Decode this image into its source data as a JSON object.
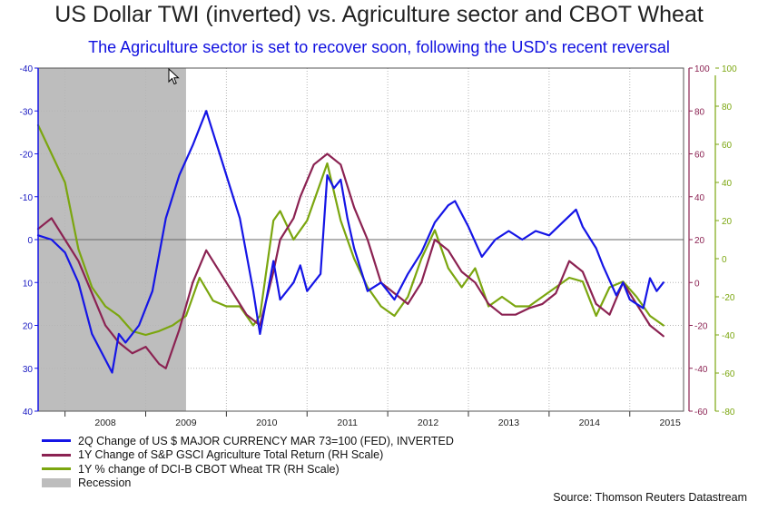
{
  "title": "US Dollar TWI (inverted) vs. Agriculture sector and CBOT Wheat",
  "subtitle": "The Agriculture sector is set to recover soon, following the USD's recent reversal",
  "source": "Source: Thomson Reuters Datastream",
  "colors": {
    "usd": "#1515e6",
    "gsci": "#8b2252",
    "wheat": "#7ba60f",
    "recession": "#bdbdbd"
  },
  "chart_data": {
    "type": "line",
    "title": "US Dollar TWI (inverted) vs. Agriculture sector and CBOT Wheat",
    "subtitle": "The Agriculture sector is set to recover soon, following the USD's recent reversal",
    "x_range": [
      "2007-09",
      "2015-09"
    ],
    "x_ticks": [
      "2008",
      "2009",
      "2010",
      "2011",
      "2012",
      "2013",
      "2014",
      "2015"
    ],
    "axes": {
      "left": {
        "min": -40,
        "max": 40,
        "inverted": true,
        "ticks": [
          -40,
          -30,
          -20,
          -10,
          0,
          10,
          20,
          30,
          40
        ],
        "color": "#1515e6"
      },
      "right1": {
        "min": -60,
        "max": 100,
        "ticks": [
          -60,
          -40,
          -20,
          0,
          20,
          40,
          60,
          80,
          100
        ],
        "color": "#8b2252"
      },
      "right2": {
        "min": -80,
        "max": 100,
        "ticks": [
          -80,
          -60,
          -40,
          -20,
          0,
          20,
          40,
          60,
          80,
          100
        ],
        "color": "#7ba60f"
      }
    },
    "grid": true,
    "legend_position": "bottom-left",
    "recession": {
      "start": "2007-09",
      "end": "2009-07",
      "label": "Recession"
    },
    "series": [
      {
        "name": "2Q Change of US $ MAJOR CURRENCY MAR 73=100 (FED), INVERTED",
        "axis": "left",
        "color": "#1515e6",
        "points": [
          [
            "2007-09",
            -1
          ],
          [
            "2007-11",
            0
          ],
          [
            "2008-01",
            3
          ],
          [
            "2008-03",
            10
          ],
          [
            "2008-05",
            22
          ],
          [
            "2008-07",
            28
          ],
          [
            "2008-08",
            31
          ],
          [
            "2008-09",
            22
          ],
          [
            "2008-10",
            24
          ],
          [
            "2008-12",
            20
          ],
          [
            "2009-02",
            12
          ],
          [
            "2009-04",
            -5
          ],
          [
            "2009-06",
            -15
          ],
          [
            "2009-08",
            -22
          ],
          [
            "2009-10",
            -30
          ],
          [
            "2009-11",
            -25
          ],
          [
            "2009-12",
            -20
          ],
          [
            "2010-02",
            -10
          ],
          [
            "2010-03",
            -5
          ],
          [
            "2010-05",
            12
          ],
          [
            "2010-06",
            22
          ],
          [
            "2010-08",
            5
          ],
          [
            "2010-09",
            14
          ],
          [
            "2010-11",
            10
          ],
          [
            "2010-12",
            6
          ],
          [
            "2011-01",
            12
          ],
          [
            "2011-03",
            8
          ],
          [
            "2011-04",
            -15
          ],
          [
            "2011-05",
            -12
          ],
          [
            "2011-06",
            -14
          ],
          [
            "2011-07",
            -5
          ],
          [
            "2011-08",
            2
          ],
          [
            "2011-10",
            12
          ],
          [
            "2011-12",
            10
          ],
          [
            "2012-02",
            14
          ],
          [
            "2012-04",
            8
          ],
          [
            "2012-06",
            3
          ],
          [
            "2012-08",
            -4
          ],
          [
            "2012-10",
            -8
          ],
          [
            "2012-11",
            -9
          ],
          [
            "2013-01",
            -3
          ],
          [
            "2013-03",
            4
          ],
          [
            "2013-05",
            0
          ],
          [
            "2013-07",
            -2
          ],
          [
            "2013-09",
            0
          ],
          [
            "2013-11",
            -2
          ],
          [
            "2014-01",
            -1
          ],
          [
            "2014-03",
            -4
          ],
          [
            "2014-05",
            -7
          ],
          [
            "2014-06",
            -3
          ],
          [
            "2014-08",
            2
          ],
          [
            "2014-09",
            6
          ],
          [
            "2014-11",
            13
          ],
          [
            "2014-12",
            10
          ],
          [
            "2015-01",
            14
          ],
          [
            "2015-03",
            16
          ],
          [
            "2015-04",
            9
          ],
          [
            "2015-05",
            12
          ],
          [
            "2015-06",
            10
          ]
        ]
      },
      {
        "name": "1Y Change of S&P GSCI Agriculture Total Return (RH Scale)",
        "axis": "right1",
        "color": "#8b2252",
        "points": [
          [
            "2007-09",
            25
          ],
          [
            "2007-11",
            30
          ],
          [
            "2008-01",
            20
          ],
          [
            "2008-03",
            10
          ],
          [
            "2008-05",
            -5
          ],
          [
            "2008-07",
            -20
          ],
          [
            "2008-09",
            -28
          ],
          [
            "2008-11",
            -33
          ],
          [
            "2009-01",
            -30
          ],
          [
            "2009-03",
            -38
          ],
          [
            "2009-04",
            -40
          ],
          [
            "2009-06",
            -22
          ],
          [
            "2009-08",
            0
          ],
          [
            "2009-10",
            15
          ],
          [
            "2009-12",
            5
          ],
          [
            "2010-02",
            -5
          ],
          [
            "2010-04",
            -15
          ],
          [
            "2010-06",
            -20
          ],
          [
            "2010-08",
            5
          ],
          [
            "2010-09",
            20
          ],
          [
            "2010-11",
            30
          ],
          [
            "2010-12",
            40
          ],
          [
            "2011-02",
            55
          ],
          [
            "2011-04",
            60
          ],
          [
            "2011-06",
            55
          ],
          [
            "2011-08",
            35
          ],
          [
            "2011-10",
            20
          ],
          [
            "2011-12",
            0
          ],
          [
            "2012-02",
            -5
          ],
          [
            "2012-04",
            -10
          ],
          [
            "2012-06",
            0
          ],
          [
            "2012-08",
            20
          ],
          [
            "2012-10",
            15
          ],
          [
            "2012-12",
            5
          ],
          [
            "2013-02",
            0
          ],
          [
            "2013-04",
            -10
          ],
          [
            "2013-06",
            -15
          ],
          [
            "2013-08",
            -15
          ],
          [
            "2013-10",
            -12
          ],
          [
            "2013-12",
            -10
          ],
          [
            "2014-02",
            -5
          ],
          [
            "2014-04",
            10
          ],
          [
            "2014-06",
            5
          ],
          [
            "2014-08",
            -10
          ],
          [
            "2014-10",
            -15
          ],
          [
            "2014-12",
            0
          ],
          [
            "2015-02",
            -10
          ],
          [
            "2015-04",
            -20
          ],
          [
            "2015-06",
            -25
          ]
        ]
      },
      {
        "name": "1Y % change of DCI-B CBOT Wheat TR (RH Scale)",
        "axis": "right2",
        "color": "#7ba60f",
        "points": [
          [
            "2007-09",
            70
          ],
          [
            "2007-11",
            55
          ],
          [
            "2008-01",
            40
          ],
          [
            "2008-03",
            5
          ],
          [
            "2008-05",
            -15
          ],
          [
            "2008-07",
            -25
          ],
          [
            "2008-09",
            -30
          ],
          [
            "2008-11",
            -38
          ],
          [
            "2009-01",
            -40
          ],
          [
            "2009-03",
            -38
          ],
          [
            "2009-05",
            -35
          ],
          [
            "2009-07",
            -30
          ],
          [
            "2009-09",
            -10
          ],
          [
            "2009-11",
            -22
          ],
          [
            "2010-01",
            -25
          ],
          [
            "2010-03",
            -25
          ],
          [
            "2010-05",
            -35
          ],
          [
            "2010-06",
            -30
          ],
          [
            "2010-08",
            20
          ],
          [
            "2010-09",
            25
          ],
          [
            "2010-11",
            10
          ],
          [
            "2011-01",
            20
          ],
          [
            "2011-03",
            40
          ],
          [
            "2011-04",
            50
          ],
          [
            "2011-06",
            20
          ],
          [
            "2011-08",
            0
          ],
          [
            "2011-10",
            -15
          ],
          [
            "2011-12",
            -25
          ],
          [
            "2012-02",
            -30
          ],
          [
            "2012-04",
            -20
          ],
          [
            "2012-06",
            0
          ],
          [
            "2012-08",
            15
          ],
          [
            "2012-10",
            -5
          ],
          [
            "2012-12",
            -15
          ],
          [
            "2013-02",
            -5
          ],
          [
            "2013-04",
            -25
          ],
          [
            "2013-06",
            -20
          ],
          [
            "2013-08",
            -25
          ],
          [
            "2013-10",
            -25
          ],
          [
            "2013-12",
            -20
          ],
          [
            "2014-02",
            -15
          ],
          [
            "2014-04",
            -10
          ],
          [
            "2014-06",
            -12
          ],
          [
            "2014-08",
            -30
          ],
          [
            "2014-10",
            -15
          ],
          [
            "2014-12",
            -12
          ],
          [
            "2015-02",
            -20
          ],
          [
            "2015-04",
            -30
          ],
          [
            "2015-06",
            -35
          ]
        ]
      }
    ]
  }
}
